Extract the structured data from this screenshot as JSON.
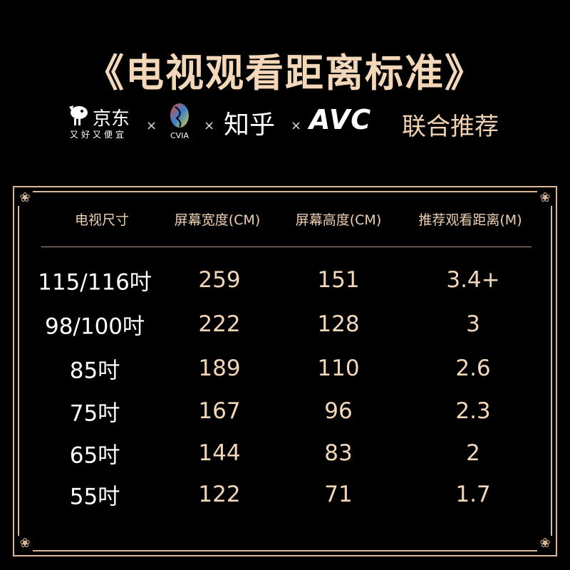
{
  "title": "《电视观看距离标准》",
  "partners": {
    "jd": {
      "name": "京东",
      "slogan": "又好又便宜"
    },
    "cvia": "CVIA",
    "zhihu": "知乎",
    "avc": "AVC",
    "separator": "×",
    "joint_label": "联合推荐"
  },
  "colors": {
    "accent": "#f2d6b8",
    "background": "#000000",
    "frame": "#d9b898"
  },
  "table": {
    "headers": [
      "电视尺寸",
      "屏幕宽度(CM)",
      "屏幕高度(CM)",
      "推荐观看距离(M)"
    ],
    "rows": [
      [
        "115/116吋",
        "259",
        "151",
        "3.4+"
      ],
      [
        "98/100吋",
        "222",
        "128",
        "3"
      ],
      [
        "85吋",
        "189",
        "110",
        "2.6"
      ],
      [
        "75吋",
        "167",
        "96",
        "2.3"
      ],
      [
        "65吋",
        "144",
        "83",
        "2"
      ],
      [
        "55吋",
        "122",
        "71",
        "1.7"
      ]
    ]
  }
}
